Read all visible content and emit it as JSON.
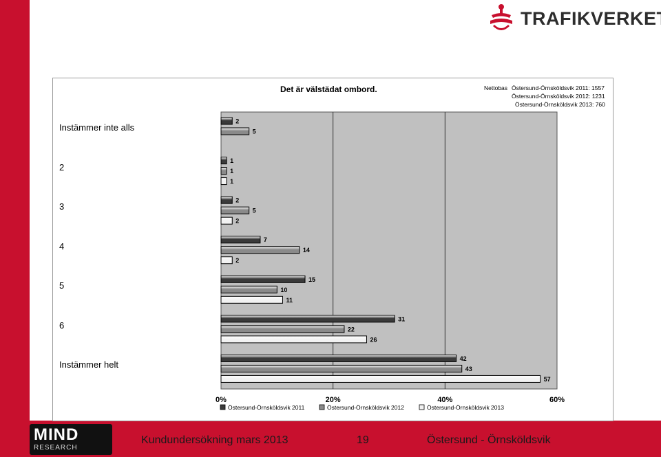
{
  "brand": {
    "name": "TRAFIKVERKET"
  },
  "footer": {
    "logo_main": "MIND",
    "logo_sub": "RESEARCH",
    "survey": "Kundundersökning mars 2013",
    "page_number": "19",
    "route": "Östersund - Örnsköldsvik"
  },
  "chart_data": {
    "type": "bar",
    "orientation": "horizontal",
    "title": "Det är välstädat ombord.",
    "nettobas": {
      "label": "Nettobas",
      "entries": [
        "Östersund-Örnsköldsvik 2011: 1557",
        "Östersund-Örnsköldsvik 2012: 1231",
        "Östersund-Örnsköldsvik 2013: 760"
      ]
    },
    "categories": [
      "Instämmer inte alls",
      "2",
      "3",
      "4",
      "5",
      "6",
      "Instämmer helt"
    ],
    "series": [
      {
        "name": "Östersund-Örnsköldsvik 2011",
        "values": [
          2,
          1,
          2,
          7,
          15,
          31,
          42
        ],
        "color": "#3a3a3a"
      },
      {
        "name": "Östersund-Örnsköldsvik 2012",
        "values": [
          5,
          1,
          5,
          14,
          10,
          22,
          43
        ],
        "color": "#8a8a8a"
      },
      {
        "name": "Östersund-Örnsköldsvik 2013",
        "values": [
          null,
          1,
          2,
          2,
          11,
          26,
          57
        ],
        "color": "#f2f2f2"
      }
    ],
    "xlim": [
      0,
      60
    ],
    "xticks": [
      "0%",
      "20%",
      "40%",
      "60%"
    ],
    "grid": true,
    "legend_position": "bottom",
    "plot_background": "#c0c0c0"
  }
}
